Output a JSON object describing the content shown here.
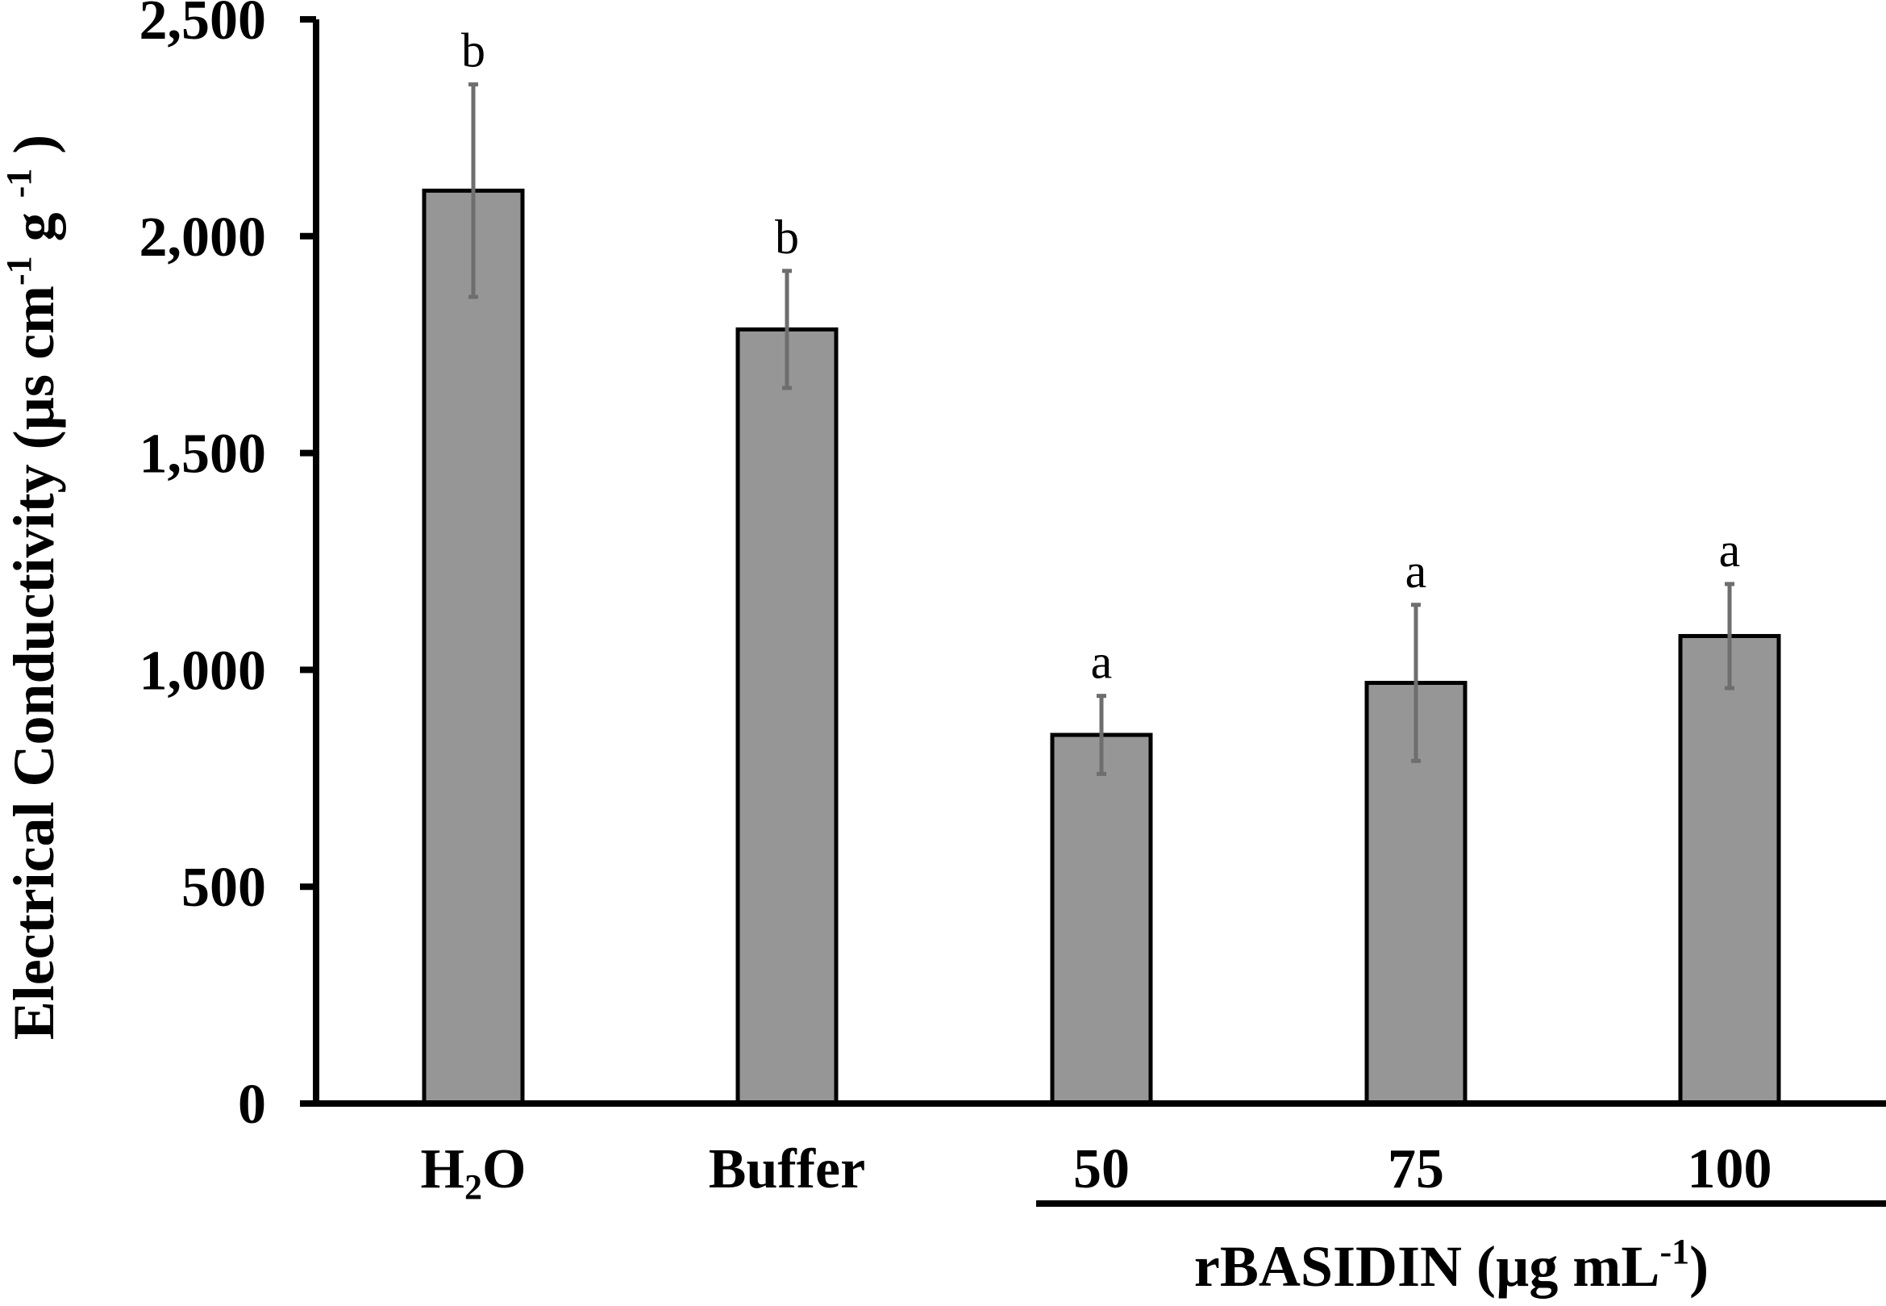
{
  "chart_data": {
    "type": "bar",
    "categories": [
      "H",
      "Buffer",
      "50",
      "75",
      "100"
    ],
    "category_subscripts": {
      "0": {
        "base": "H",
        "sub": "2",
        "tail": "O"
      }
    },
    "values": [
      2105,
      1785,
      850,
      970,
      1078
    ],
    "errors": [
      245,
      135,
      90,
      180,
      120
    ],
    "significance": [
      "b",
      "b",
      "a",
      "a",
      "a"
    ],
    "ylabel": {
      "main": "Electrical Conductivity (µs cm",
      "sup1": "-1",
      "mid": " g ",
      "sup2": "-1",
      "end": " )"
    },
    "group_label": {
      "main": "rBASIDIN (µg mL",
      "sup": "-1",
      "end": ")"
    },
    "yticks": [
      "0",
      "500",
      "1,000",
      "1,500",
      "2,000",
      "2,500"
    ],
    "ytick_values": [
      0,
      500,
      1000,
      1500,
      2000,
      2500
    ],
    "ylim": [
      0,
      2500
    ],
    "bar_color": "#969696",
    "error_color": "#6e6e6e",
    "grid": false
  }
}
